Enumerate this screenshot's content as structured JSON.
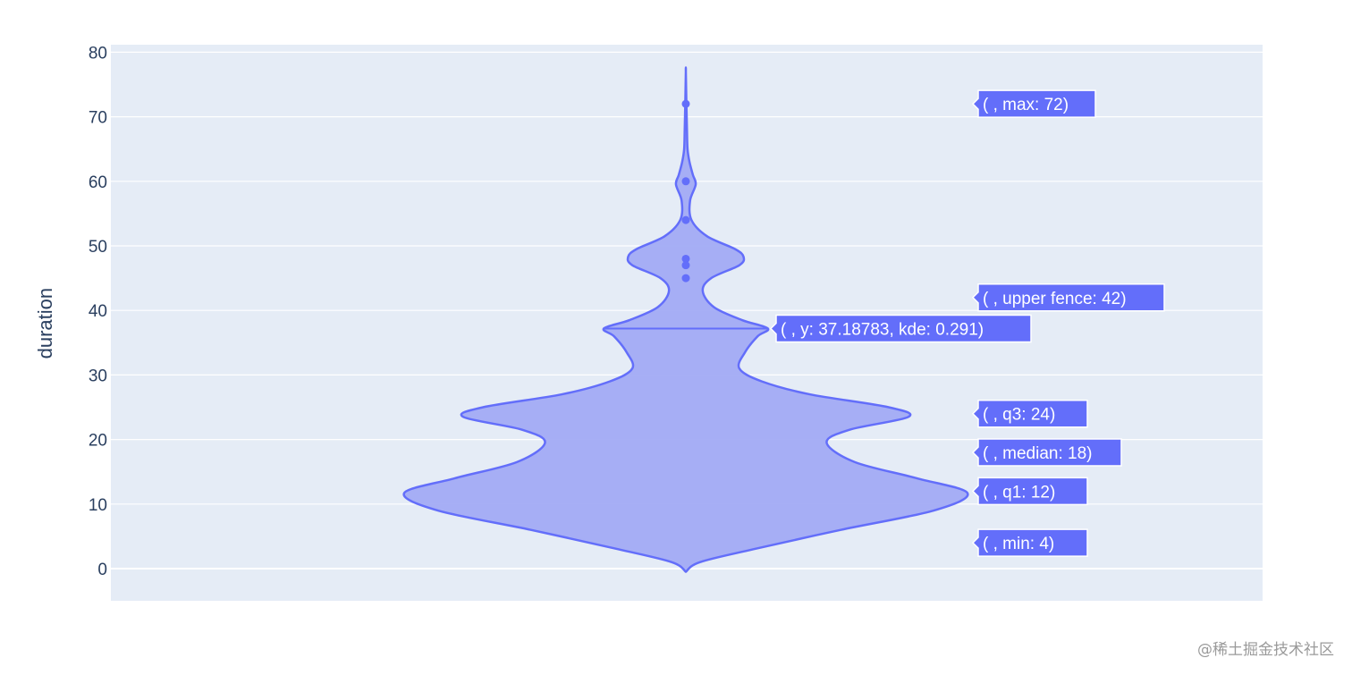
{
  "chart_data": {
    "type": "violin",
    "ylabel": "duration",
    "ylim": [
      -5,
      80
    ],
    "yticks": [
      0,
      10,
      20,
      30,
      40,
      50,
      60,
      70,
      80
    ],
    "grid": true,
    "kde_profile": [
      [
        -0.5,
        0.0
      ],
      [
        1,
        0.05
      ],
      [
        3,
        0.24
      ],
      [
        6,
        0.55
      ],
      [
        9,
        0.88
      ],
      [
        11.7,
        1.0
      ],
      [
        14,
        0.82
      ],
      [
        16.5,
        0.6
      ],
      [
        19.5,
        0.5
      ],
      [
        21.5,
        0.58
      ],
      [
        23.5,
        0.79
      ],
      [
        25,
        0.72
      ],
      [
        27,
        0.44
      ],
      [
        29,
        0.27
      ],
      [
        31,
        0.19
      ],
      [
        33.5,
        0.21
      ],
      [
        36,
        0.255
      ],
      [
        37.2,
        0.291
      ],
      [
        38.5,
        0.2
      ],
      [
        40.5,
        0.1
      ],
      [
        43,
        0.06
      ],
      [
        45,
        0.09
      ],
      [
        47,
        0.19
      ],
      [
        48.3,
        0.205
      ],
      [
        49.5,
        0.175
      ],
      [
        51.5,
        0.075
      ],
      [
        54,
        0.02
      ],
      [
        57,
        0.015
      ],
      [
        59.5,
        0.035
      ],
      [
        61,
        0.025
      ],
      [
        63,
        0.013
      ],
      [
        65,
        0.006
      ],
      [
        68,
        0.004
      ],
      [
        72,
        0.002
      ],
      [
        77,
        0.0
      ]
    ],
    "points": [
      72,
      60,
      54,
      48,
      47,
      45
    ],
    "hover_line": {
      "y": 37.18783,
      "kde": 0.291
    },
    "stats": {
      "min": 4,
      "q1": 12,
      "median": 18,
      "q3": 24,
      "upper_fence": 42,
      "max": 72
    },
    "labels": [
      {
        "text": "( , max: 72)",
        "y": 72
      },
      {
        "text": "( , upper fence: 42)",
        "y": 42
      },
      {
        "text": "( , y: 37.18783, kde: 0.291)",
        "y": 37.18783
      },
      {
        "text": "( , q3: 24)",
        "y": 24
      },
      {
        "text": "( , median: 18)",
        "y": 18
      },
      {
        "text": "( , q1: 12)",
        "y": 12
      },
      {
        "text": "( , min: 4)",
        "y": 4
      }
    ],
    "colors": {
      "plot_bg": "#e5ecf6",
      "grid": "#ffffff",
      "fill": "#a2abf4",
      "line": "#636efa",
      "label_bg": "#636efa",
      "text": "#2a3f5f"
    }
  },
  "watermark": "@稀土掘金技术社区"
}
